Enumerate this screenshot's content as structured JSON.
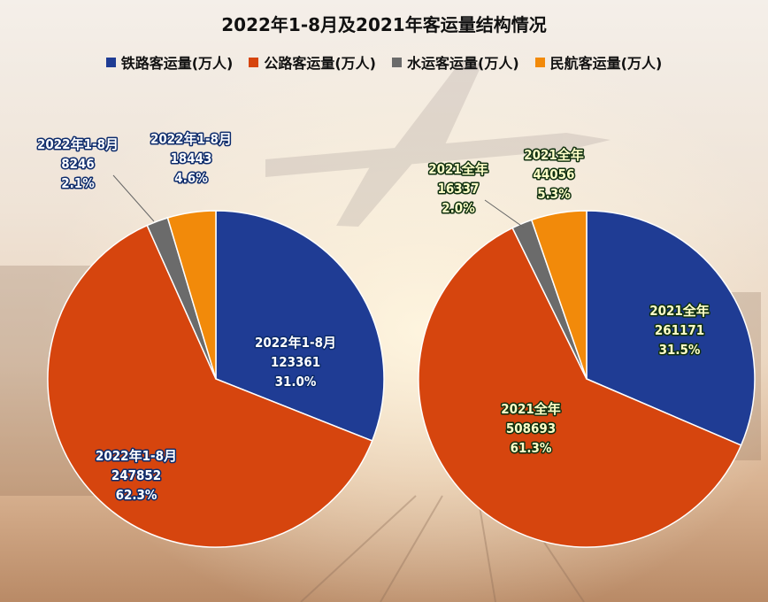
{
  "title": "2022年1-8月及2021年客运量结构情况",
  "legend": [
    {
      "name": "铁路客运量(万人)",
      "color": "#1f3c94"
    },
    {
      "name": "公路客运量(万人)",
      "color": "#d6450e"
    },
    {
      "name": "水运客运量(万人)",
      "color": "#6b6b6b"
    },
    {
      "name": "民航客运量(万人)",
      "color": "#f28a0a"
    }
  ],
  "chart_data": [
    {
      "type": "pie",
      "categories": [
        "铁路客运量(万人)",
        "公路客运量(万人)",
        "水运客运量(万人)",
        "民航客运量(万人)"
      ],
      "series_label": "2022年1-8月",
      "values": [
        123361,
        247852,
        8246,
        18443
      ],
      "percents": [
        "31.0%",
        "62.3%",
        "2.1%",
        "4.6%"
      ],
      "colors": [
        "#1f3c94",
        "#d6450e",
        "#6b6b6b",
        "#f28a0a"
      ]
    },
    {
      "type": "pie",
      "categories": [
        "铁路客运量(万人)",
        "公路客运量(万人)",
        "水运客运量(万人)",
        "民航客运量(万人)"
      ],
      "series_label": "2021全年",
      "values": [
        261171,
        508693,
        16337,
        44056
      ],
      "percents": [
        "31.5%",
        "61.3%",
        "2.0%",
        "5.3%"
      ],
      "colors": [
        "#1f3c94",
        "#d6450e",
        "#6b6b6b",
        "#f28a0a"
      ]
    }
  ]
}
